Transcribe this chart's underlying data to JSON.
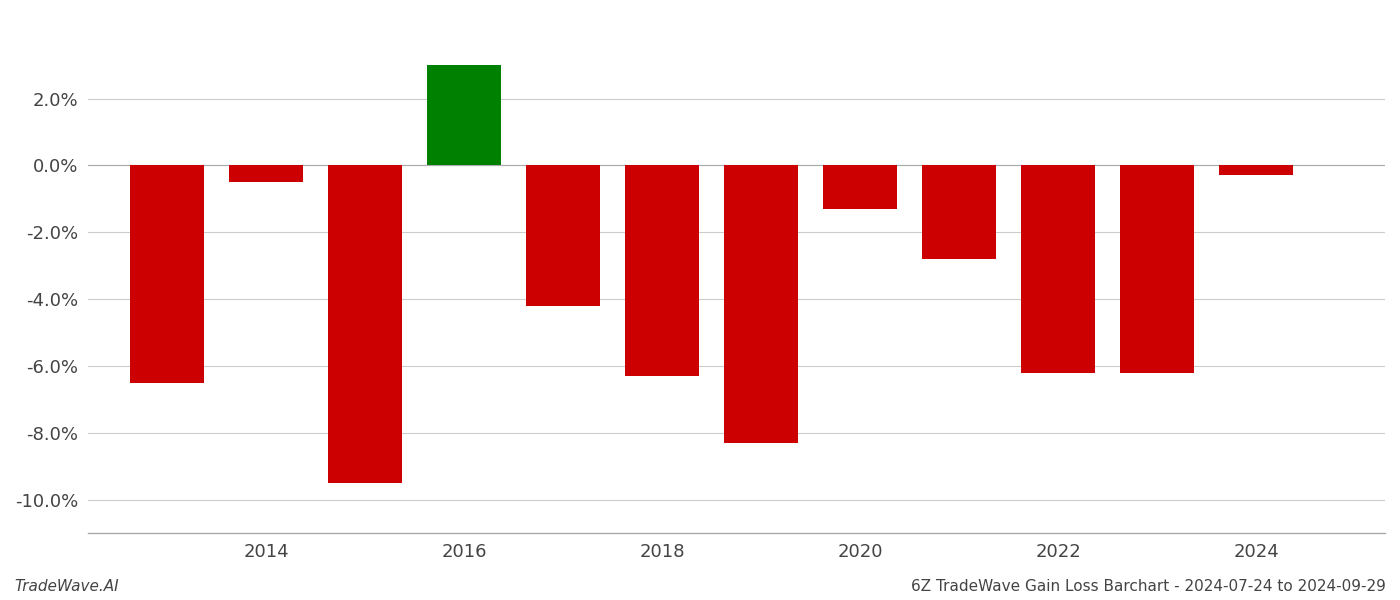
{
  "years": [
    2013,
    2014,
    2015,
    2016,
    2017,
    2018,
    2019,
    2020,
    2021,
    2022,
    2023,
    2024
  ],
  "values": [
    -0.065,
    -0.005,
    -0.095,
    0.03,
    -0.042,
    -0.063,
    -0.083,
    -0.013,
    -0.028,
    -0.062,
    -0.062,
    -0.003
  ],
  "bar_colors": [
    "#cc0000",
    "#cc0000",
    "#cc0000",
    "#008000",
    "#cc0000",
    "#cc0000",
    "#cc0000",
    "#cc0000",
    "#cc0000",
    "#cc0000",
    "#cc0000",
    "#cc0000"
  ],
  "ylim": [
    -0.11,
    0.045
  ],
  "yticks": [
    -0.1,
    -0.08,
    -0.06,
    -0.04,
    -0.02,
    0.0,
    0.02
  ],
  "xtick_labels": [
    "2014",
    "2016",
    "2018",
    "2020",
    "2022",
    "2024"
  ],
  "xtick_positions": [
    2014,
    2016,
    2018,
    2020,
    2022,
    2024
  ],
  "xlim": [
    2012.2,
    2025.3
  ],
  "xlabel": "",
  "ylabel": "",
  "footer_left": "TradeWave.AI",
  "footer_right": "6Z TradeWave Gain Loss Barchart - 2024-07-24 to 2024-09-29",
  "bar_width": 0.75,
  "grid_color": "#cccccc",
  "background_color": "#ffffff",
  "text_color": "#444444",
  "tick_fontsize": 13,
  "footer_fontsize": 11
}
